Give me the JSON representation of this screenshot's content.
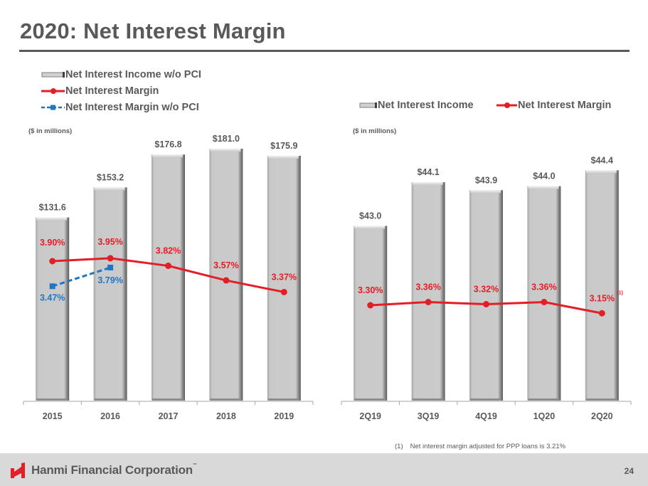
{
  "slide": {
    "title": "2020: Net Interest Margin",
    "page_number": "24",
    "company": "Hanmi Financial Corporation",
    "company_tm": "™",
    "footnote_marker": "(1)",
    "footnote_text": "Net interest margin adjusted for PPP loans is 3.21%"
  },
  "colors": {
    "bar_fill": "#c8c8c8",
    "nim_line": "#e41e26",
    "nim_wo_pci_line": "#1f77c4",
    "text": "#595959",
    "footer_bg": "#d9d9d9",
    "logo_red": "#e41e26"
  },
  "chart_data": [
    {
      "type": "bar",
      "title": "",
      "units_label": "($ in millions)",
      "legend_position": "top-left",
      "legend": [
        "Net Interest Income w/o PCI",
        "Net Interest Margin",
        "Net Interest Margin w/o PCI"
      ],
      "categories": [
        "2015",
        "2016",
        "2017",
        "2018",
        "2019"
      ],
      "series": [
        {
          "name": "Net Interest Income w/o PCI",
          "kind": "bar",
          "values": [
            131.6,
            153.2,
            176.8,
            181.0,
            175.9
          ],
          "labels": [
            "$131.6",
            "$153.2",
            "$176.8",
            "$181.0",
            "$175.9"
          ]
        },
        {
          "name": "Net Interest Margin",
          "kind": "line",
          "values": [
            3.9,
            3.95,
            3.82,
            3.57,
            3.37
          ],
          "labels": [
            "3.90%",
            "3.95%",
            "3.82%",
            "3.57%",
            "3.37%"
          ]
        },
        {
          "name": "Net Interest Margin w/o PCI",
          "kind": "line-dashed",
          "values": [
            3.47,
            3.79,
            null,
            null,
            null
          ],
          "labels": [
            "3.47%",
            "3.79%",
            "",
            "",
            ""
          ]
        }
      ],
      "xlabel": "",
      "ylabel": "",
      "grid": false
    },
    {
      "type": "bar",
      "title": "",
      "units_label": "($ in millions)",
      "legend_position": "top",
      "legend": [
        "Net Interest Income",
        "Net Interest Margin"
      ],
      "categories": [
        "2Q19",
        "3Q19",
        "4Q19",
        "1Q20",
        "2Q20"
      ],
      "series": [
        {
          "name": "Net Interest Income",
          "kind": "bar",
          "values": [
            43.0,
            44.1,
            43.9,
            44.0,
            44.4
          ],
          "labels": [
            "$43.0",
            "$44.1",
            "$43.9",
            "$44.0",
            "$44.4"
          ]
        },
        {
          "name": "Net Interest Margin",
          "kind": "line",
          "values": [
            3.3,
            3.36,
            3.32,
            3.36,
            3.15
          ],
          "labels": [
            "3.30%",
            "3.36%",
            "3.32%",
            "3.36%",
            "3.15%"
          ],
          "annotations": [
            null,
            null,
            null,
            null,
            "(1)"
          ]
        }
      ],
      "xlabel": "",
      "ylabel": "",
      "grid": false
    }
  ]
}
